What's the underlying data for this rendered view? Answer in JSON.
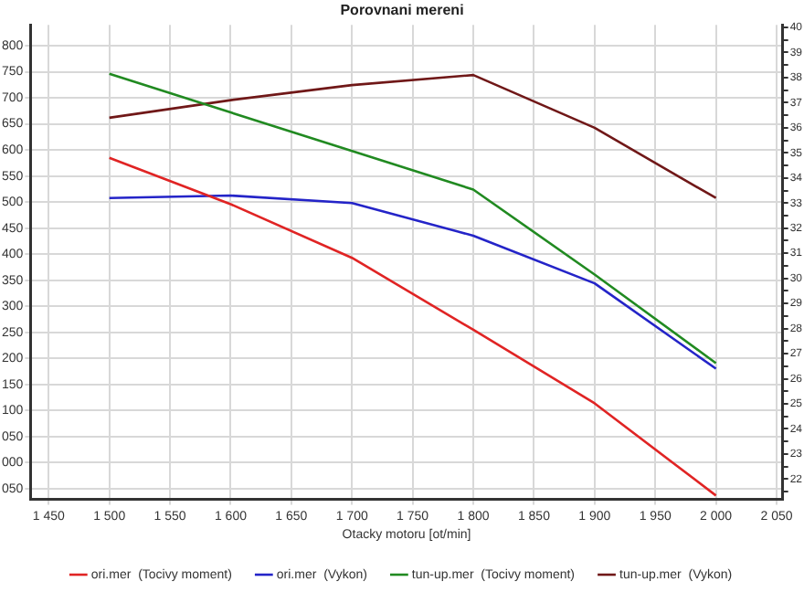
{
  "chart_data": {
    "type": "line",
    "title": "Porovnani mereni",
    "xlabel": "Otacky motoru [ot/min]",
    "x": [
      1500,
      1600,
      1700,
      1800,
      1900,
      2000
    ],
    "series": [
      {
        "name": "ori.mer  (Tocivy moment)",
        "color": "#e02424",
        "values": [
          585,
          496,
          393,
          255,
          114,
          -63
        ]
      },
      {
        "name": "ori.mer  (Vykon)",
        "color": "#2424c8",
        "axis": "y2",
        "values": [
          33.2,
          33.3,
          33.0,
          31.7,
          29.8,
          26.4
        ]
      },
      {
        "name": "tun-up.mer  (Tocivy moment)",
        "color": "#218a21",
        "values": [
          746,
          672,
          598,
          524,
          361,
          191
        ]
      },
      {
        "name": "tun-up.mer  (Vykon)",
        "color": "#701818",
        "axis": "y2",
        "values": [
          36.4,
          37.1,
          37.7,
          38.1,
          36.0,
          33.2
        ]
      }
    ],
    "xlim": [
      1435,
      2055
    ],
    "xticks": [
      {
        "value": 1450,
        "label": "1 450"
      },
      {
        "value": 1500,
        "label": "1 500"
      },
      {
        "value": 1550,
        "label": "1 550"
      },
      {
        "value": 1600,
        "label": "1 600"
      },
      {
        "value": 1650,
        "label": "1 650"
      },
      {
        "value": 1700,
        "label": "1 700"
      },
      {
        "value": 1750,
        "label": "1 750"
      },
      {
        "value": 1800,
        "label": "1 800"
      },
      {
        "value": 1850,
        "label": "1 850"
      },
      {
        "value": 1900,
        "label": "1 900"
      },
      {
        "value": 1950,
        "label": "1 950"
      },
      {
        "value": 2000,
        "label": "2 000"
      },
      {
        "value": 2050,
        "label": "2 050"
      }
    ],
    "ylim": [
      -70,
      840
    ],
    "yticks": [
      {
        "value": -50,
        "label": "050"
      },
      {
        "value": 0,
        "label": "000"
      },
      {
        "value": 50,
        "label": "050"
      },
      100,
      150,
      200,
      250,
      300,
      350,
      400,
      450,
      500,
      550,
      600,
      650,
      700,
      750,
      800
    ],
    "y2lim": [
      21.2,
      40.1
    ],
    "y2ticks": [
      {
        "value": 21.5,
        "label": null
      },
      22,
      {
        "value": 22.5,
        "label": null
      },
      23,
      {
        "value": 23.5,
        "label": null
      },
      24,
      {
        "value": 24.5,
        "label": null
      },
      25,
      {
        "value": 25.5,
        "label": null
      },
      26,
      {
        "value": 26.5,
        "label": null
      },
      27,
      {
        "value": 27.5,
        "label": null
      },
      28,
      {
        "value": 28.5,
        "label": null
      },
      29,
      {
        "value": 29.5,
        "label": null
      },
      30,
      {
        "value": 30.5,
        "label": null
      },
      31,
      {
        "value": 31.5,
        "label": null
      },
      32,
      {
        "value": 32.5,
        "label": null
      },
      33,
      {
        "value": 33.5,
        "label": null
      },
      34,
      {
        "value": 34.5,
        "label": null
      },
      35,
      {
        "value": 35.5,
        "label": null
      },
      36,
      {
        "value": 36.5,
        "label": null
      },
      37,
      {
        "value": 37.5,
        "label": null
      },
      38,
      {
        "value": 38.5,
        "label": null
      },
      39,
      {
        "value": 39.5,
        "label": null
      },
      40
    ],
    "grid": true,
    "legend": "bottom",
    "marker": "none",
    "line_style": "solid"
  }
}
